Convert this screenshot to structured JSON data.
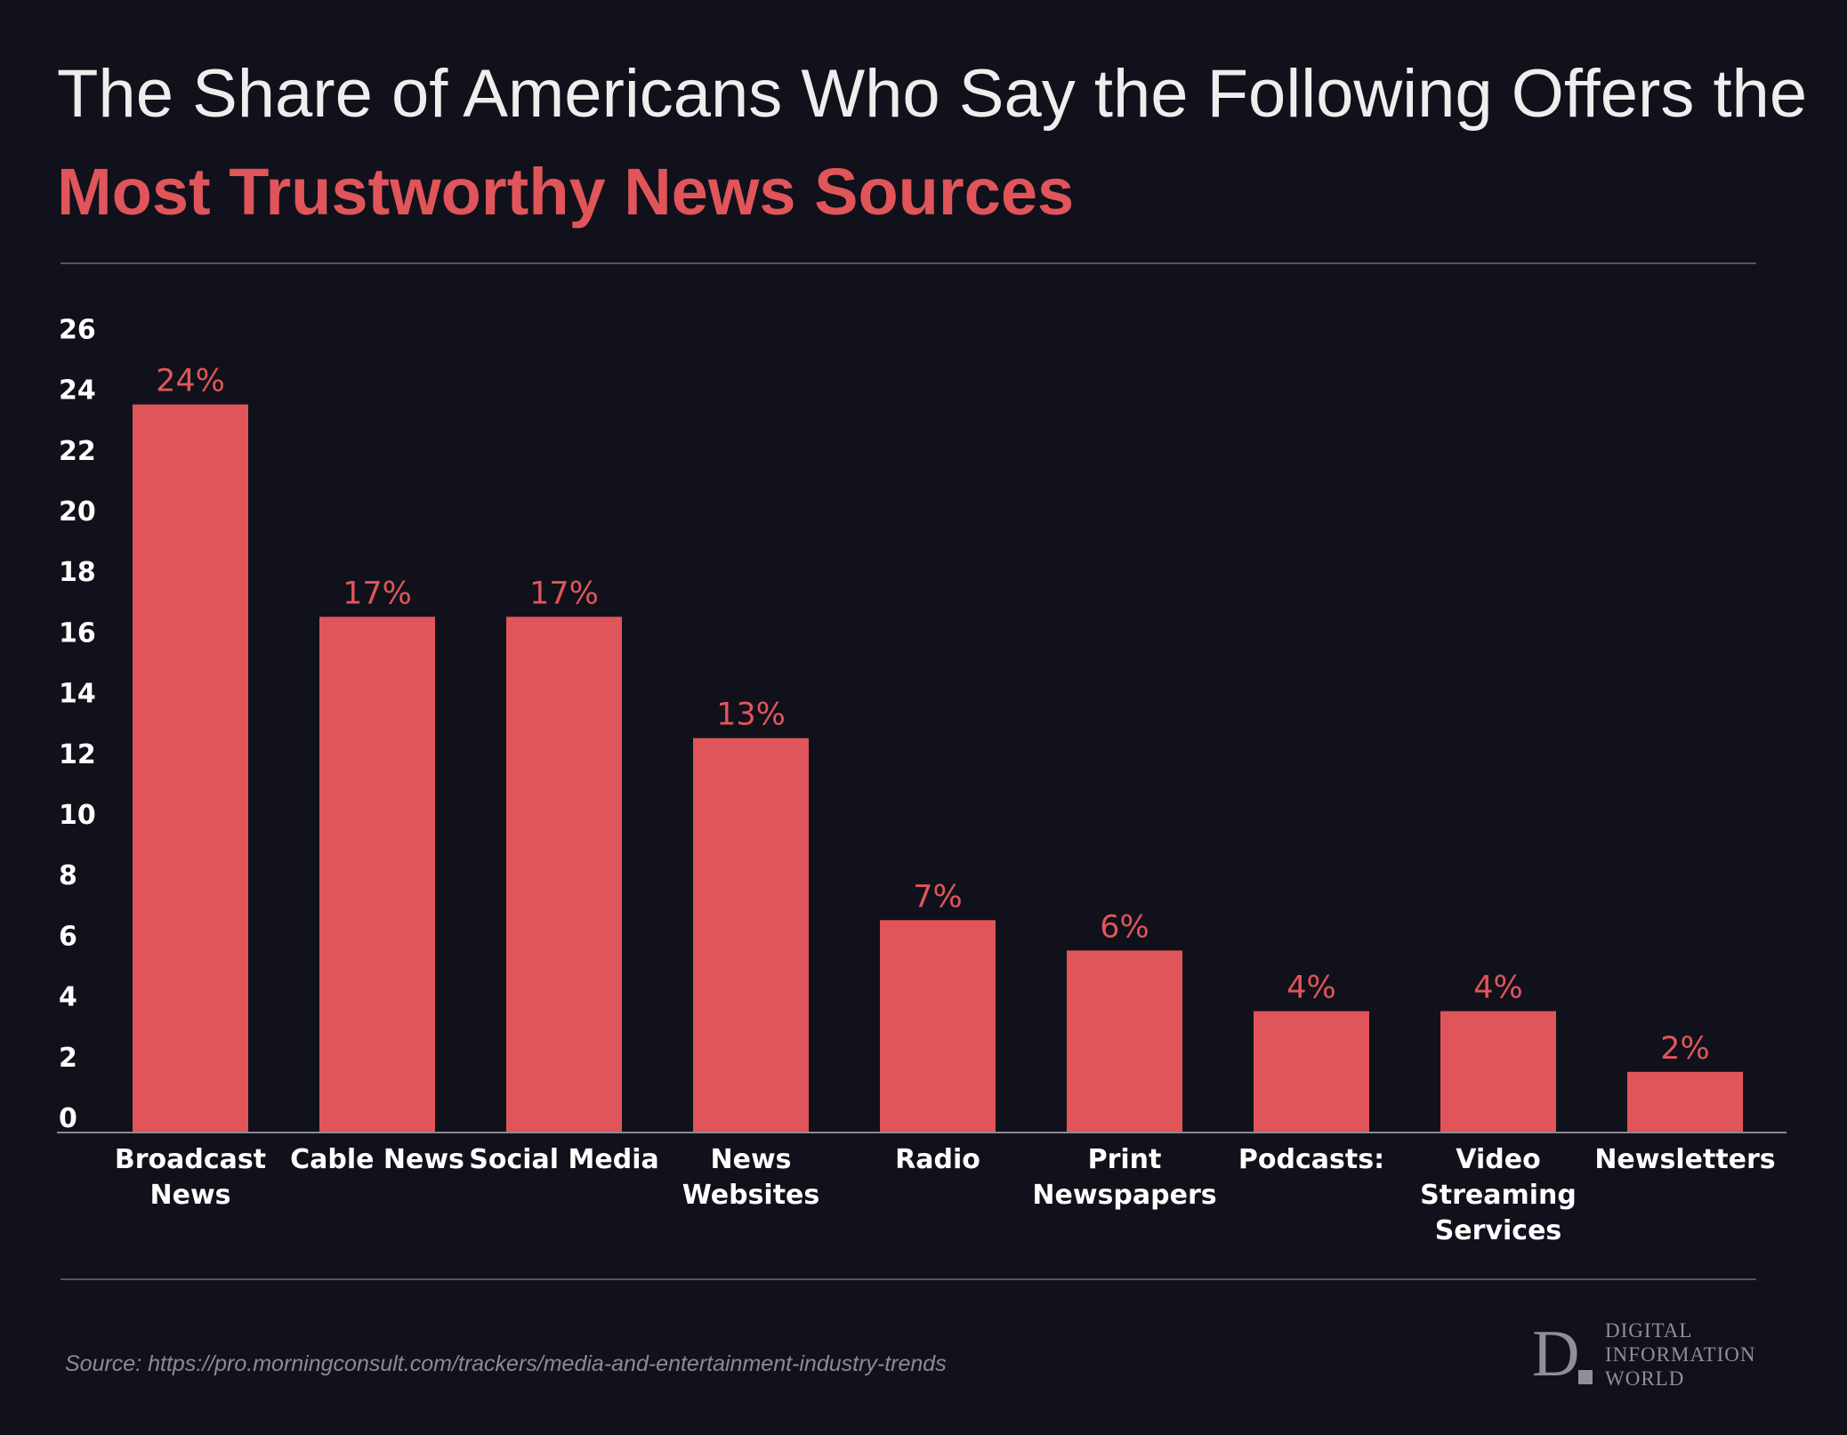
{
  "title": {
    "line1": "The Share of Americans Who Say the Following Offers the",
    "line2": "Most Trustworthy News Sources"
  },
  "chart_data": {
    "type": "bar",
    "title": "The Share of Americans Who Say the Following Offers the Most Trustworthy News Sources",
    "xlabel": "",
    "ylabel": "",
    "ylim": [
      0,
      26
    ],
    "yticks": [
      0,
      2,
      4,
      6,
      8,
      10,
      12,
      14,
      16,
      18,
      20,
      22,
      24,
      26
    ],
    "grid": false,
    "categories": [
      [
        "Broadcast",
        "News"
      ],
      [
        "Cable News"
      ],
      [
        "Social Media"
      ],
      [
        "News",
        "Websites"
      ],
      [
        "Radio"
      ],
      [
        "Print",
        "Newspapers"
      ],
      [
        "Podcasts:"
      ],
      [
        "Video",
        "Streaming",
        "Services"
      ],
      [
        "Newsletters"
      ]
    ],
    "values": [
      24,
      17,
      17,
      13,
      7,
      6,
      4,
      4,
      2
    ],
    "data_labels": [
      "24%",
      "17%",
      "17%",
      "13%",
      "7%",
      "6%",
      "4%",
      "4%",
      "2%"
    ],
    "bar_color": "#e0555a"
  },
  "source": "Source: https://pro.morningconsult.com/trackers/media-and-entertainment-industry-trends",
  "logo": {
    "mark": "D",
    "lines": [
      "DIGITAL",
      "INFORMATION",
      "WORLD"
    ]
  }
}
